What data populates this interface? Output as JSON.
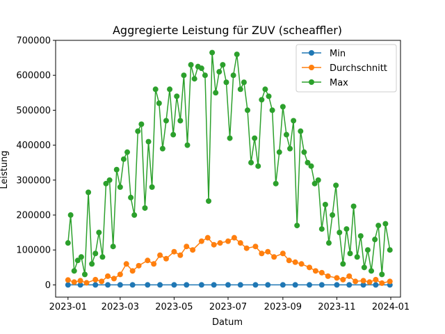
{
  "chart_data": {
    "type": "line",
    "title": "Aggregierte Leistung für ZUV (scheaffler)",
    "xlabel": "Datum",
    "ylabel": "Leistung",
    "x_range": [
      "2022-12-18",
      "2024-01-12"
    ],
    "ylim": [
      -35000,
      700000
    ],
    "x_ticks": [
      {
        "date": "2023-01-01",
        "label": "2023-01"
      },
      {
        "date": "2023-03-01",
        "label": "2023-03"
      },
      {
        "date": "2023-05-01",
        "label": "2023-05"
      },
      {
        "date": "2023-07-01",
        "label": "2023-07"
      },
      {
        "date": "2023-09-01",
        "label": "2023-09"
      },
      {
        "date": "2023-11-01",
        "label": "2023-11"
      },
      {
        "date": "2024-01-01",
        "label": "2024-01"
      }
    ],
    "y_ticks": [
      {
        "value": 0,
        "label": "0"
      },
      {
        "value": 100000,
        "label": "100000"
      },
      {
        "value": 200000,
        "label": "200000"
      },
      {
        "value": 300000,
        "label": "300000"
      },
      {
        "value": 400000,
        "label": "400000"
      },
      {
        "value": 500000,
        "label": "500000"
      },
      {
        "value": 600000,
        "label": "600000"
      },
      {
        "value": 700000,
        "label": "700000"
      }
    ],
    "grid": false,
    "legend_position": "top-right",
    "series": [
      {
        "name": "Min",
        "color": "#1f77b4",
        "marker": "circle",
        "points": [
          [
            "2023-01-01",
            0
          ],
          [
            "2023-01-15",
            0
          ],
          [
            "2023-02-01",
            0
          ],
          [
            "2023-02-15",
            0
          ],
          [
            "2023-03-01",
            0
          ],
          [
            "2023-03-15",
            0
          ],
          [
            "2023-04-01",
            0
          ],
          [
            "2023-04-15",
            0
          ],
          [
            "2023-05-01",
            0
          ],
          [
            "2023-05-15",
            0
          ],
          [
            "2023-06-01",
            0
          ],
          [
            "2023-06-15",
            0
          ],
          [
            "2023-07-01",
            0
          ],
          [
            "2023-07-15",
            0
          ],
          [
            "2023-08-01",
            0
          ],
          [
            "2023-08-15",
            0
          ],
          [
            "2023-09-01",
            0
          ],
          [
            "2023-09-15",
            0
          ],
          [
            "2023-10-01",
            0
          ],
          [
            "2023-10-15",
            0
          ],
          [
            "2023-11-01",
            0
          ],
          [
            "2023-11-15",
            0
          ],
          [
            "2023-12-01",
            0
          ],
          [
            "2023-12-15",
            0
          ],
          [
            "2023-12-31",
            0
          ]
        ]
      },
      {
        "name": "Durchschnitt",
        "color": "#ff7f0e",
        "marker": "circle",
        "points": [
          [
            "2023-01-01",
            14000
          ],
          [
            "2023-01-08",
            8000
          ],
          [
            "2023-01-15",
            12000
          ],
          [
            "2023-01-22",
            6000
          ],
          [
            "2023-02-01",
            15000
          ],
          [
            "2023-02-08",
            10000
          ],
          [
            "2023-02-15",
            25000
          ],
          [
            "2023-02-22",
            18000
          ],
          [
            "2023-03-01",
            30000
          ],
          [
            "2023-03-08",
            60000
          ],
          [
            "2023-03-15",
            40000
          ],
          [
            "2023-03-22",
            55000
          ],
          [
            "2023-04-01",
            70000
          ],
          [
            "2023-04-08",
            60000
          ],
          [
            "2023-04-15",
            85000
          ],
          [
            "2023-04-22",
            75000
          ],
          [
            "2023-05-01",
            95000
          ],
          [
            "2023-05-08",
            85000
          ],
          [
            "2023-05-15",
            110000
          ],
          [
            "2023-05-22",
            100000
          ],
          [
            "2023-06-01",
            125000
          ],
          [
            "2023-06-08",
            135000
          ],
          [
            "2023-06-15",
            115000
          ],
          [
            "2023-06-22",
            120000
          ],
          [
            "2023-07-01",
            125000
          ],
          [
            "2023-07-08",
            135000
          ],
          [
            "2023-07-15",
            120000
          ],
          [
            "2023-07-22",
            105000
          ],
          [
            "2023-08-01",
            110000
          ],
          [
            "2023-08-08",
            90000
          ],
          [
            "2023-08-15",
            95000
          ],
          [
            "2023-08-22",
            80000
          ],
          [
            "2023-09-01",
            90000
          ],
          [
            "2023-09-08",
            70000
          ],
          [
            "2023-09-15",
            65000
          ],
          [
            "2023-09-22",
            60000
          ],
          [
            "2023-10-01",
            50000
          ],
          [
            "2023-10-08",
            40000
          ],
          [
            "2023-10-15",
            35000
          ],
          [
            "2023-10-22",
            25000
          ],
          [
            "2023-11-01",
            20000
          ],
          [
            "2023-11-08",
            15000
          ],
          [
            "2023-11-15",
            25000
          ],
          [
            "2023-11-22",
            10000
          ],
          [
            "2023-12-01",
            12000
          ],
          [
            "2023-12-08",
            8000
          ],
          [
            "2023-12-15",
            15000
          ],
          [
            "2023-12-22",
            5000
          ],
          [
            "2023-12-31",
            10000
          ]
        ]
      },
      {
        "name": "Max",
        "color": "#2ca02c",
        "marker": "circle",
        "points": [
          [
            "2023-01-01",
            120000
          ],
          [
            "2023-01-04",
            200000
          ],
          [
            "2023-01-08",
            40000
          ],
          [
            "2023-01-12",
            70000
          ],
          [
            "2023-01-16",
            80000
          ],
          [
            "2023-01-20",
            30000
          ],
          [
            "2023-01-24",
            265000
          ],
          [
            "2023-01-28",
            60000
          ],
          [
            "2023-02-01",
            90000
          ],
          [
            "2023-02-05",
            150000
          ],
          [
            "2023-02-09",
            80000
          ],
          [
            "2023-02-13",
            290000
          ],
          [
            "2023-02-17",
            300000
          ],
          [
            "2023-02-21",
            110000
          ],
          [
            "2023-02-25",
            330000
          ],
          [
            "2023-03-01",
            280000
          ],
          [
            "2023-03-05",
            360000
          ],
          [
            "2023-03-09",
            380000
          ],
          [
            "2023-03-13",
            250000
          ],
          [
            "2023-03-17",
            200000
          ],
          [
            "2023-03-21",
            440000
          ],
          [
            "2023-03-25",
            460000
          ],
          [
            "2023-03-29",
            220000
          ],
          [
            "2023-04-02",
            410000
          ],
          [
            "2023-04-06",
            280000
          ],
          [
            "2023-04-10",
            560000
          ],
          [
            "2023-04-14",
            520000
          ],
          [
            "2023-04-18",
            390000
          ],
          [
            "2023-04-22",
            470000
          ],
          [
            "2023-04-26",
            560000
          ],
          [
            "2023-04-30",
            430000
          ],
          [
            "2023-05-04",
            540000
          ],
          [
            "2023-05-08",
            470000
          ],
          [
            "2023-05-12",
            600000
          ],
          [
            "2023-05-16",
            400000
          ],
          [
            "2023-05-20",
            630000
          ],
          [
            "2023-05-24",
            590000
          ],
          [
            "2023-05-28",
            625000
          ],
          [
            "2023-06-01",
            620000
          ],
          [
            "2023-06-05",
            600000
          ],
          [
            "2023-06-09",
            240000
          ],
          [
            "2023-06-13",
            665000
          ],
          [
            "2023-06-17",
            550000
          ],
          [
            "2023-06-21",
            610000
          ],
          [
            "2023-06-25",
            630000
          ],
          [
            "2023-06-29",
            580000
          ],
          [
            "2023-07-03",
            420000
          ],
          [
            "2023-07-07",
            600000
          ],
          [
            "2023-07-11",
            660000
          ],
          [
            "2023-07-15",
            560000
          ],
          [
            "2023-07-19",
            580000
          ],
          [
            "2023-07-23",
            500000
          ],
          [
            "2023-07-27",
            350000
          ],
          [
            "2023-07-31",
            420000
          ],
          [
            "2023-08-04",
            340000
          ],
          [
            "2023-08-08",
            530000
          ],
          [
            "2023-08-12",
            560000
          ],
          [
            "2023-08-16",
            540000
          ],
          [
            "2023-08-20",
            500000
          ],
          [
            "2023-08-24",
            290000
          ],
          [
            "2023-08-28",
            380000
          ],
          [
            "2023-09-01",
            510000
          ],
          [
            "2023-09-05",
            430000
          ],
          [
            "2023-09-09",
            390000
          ],
          [
            "2023-09-13",
            470000
          ],
          [
            "2023-09-17",
            170000
          ],
          [
            "2023-09-21",
            440000
          ],
          [
            "2023-09-25",
            380000
          ],
          [
            "2023-09-29",
            350000
          ],
          [
            "2023-10-03",
            340000
          ],
          [
            "2023-10-07",
            290000
          ],
          [
            "2023-10-11",
            300000
          ],
          [
            "2023-10-15",
            160000
          ],
          [
            "2023-10-19",
            230000
          ],
          [
            "2023-10-23",
            120000
          ],
          [
            "2023-10-27",
            200000
          ],
          [
            "2023-10-31",
            285000
          ],
          [
            "2023-11-04",
            150000
          ],
          [
            "2023-11-08",
            60000
          ],
          [
            "2023-11-12",
            160000
          ],
          [
            "2023-11-16",
            90000
          ],
          [
            "2023-11-20",
            225000
          ],
          [
            "2023-11-24",
            80000
          ],
          [
            "2023-11-28",
            140000
          ],
          [
            "2023-12-02",
            50000
          ],
          [
            "2023-12-06",
            100000
          ],
          [
            "2023-12-10",
            40000
          ],
          [
            "2023-12-14",
            130000
          ],
          [
            "2023-12-18",
            170000
          ],
          [
            "2023-12-22",
            30000
          ],
          [
            "2023-12-26",
            175000
          ],
          [
            "2023-12-31",
            100000
          ]
        ]
      }
    ]
  }
}
